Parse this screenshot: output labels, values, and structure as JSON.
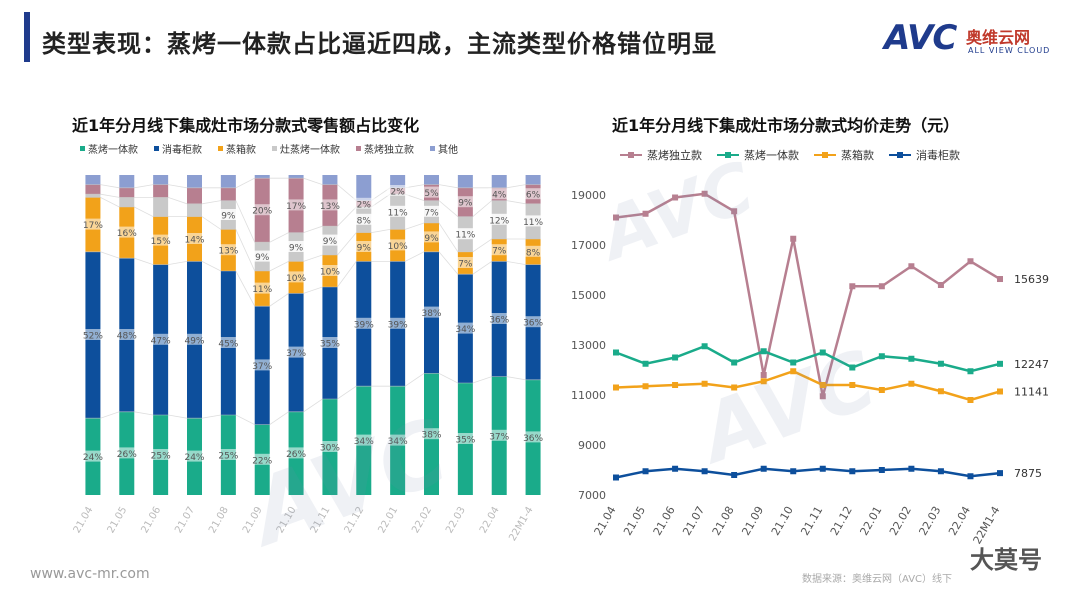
{
  "page_title": "类型表现：蒸烤一体款占比逼近四成，主流类型价格错位明显",
  "logo": {
    "mark": "AVC",
    "cn": "奥维云网",
    "en": "ALL VIEW CLOUD"
  },
  "footer": {
    "site": "www.avc-mr.com",
    "source": "数据来源：奥维云网（AVC）线下"
  },
  "corner_mark": "大莫号",
  "watermark": "AVC",
  "colors": {
    "steam_oven": "#1aab8a",
    "disinfect": "#0d4f9c",
    "steam_box": "#f2a21a",
    "stove_steam": "#c9c9c9",
    "steam_independent": "#b77f90",
    "other": "#8c9ed1",
    "title_bar": "#1f3b8c"
  },
  "chart_data": [
    {
      "type": "bar",
      "stacked": true,
      "percent": true,
      "title": "近1年分月线下集成灶市场分款式零售额占比变化",
      "legend_position": "top",
      "categories": [
        "21.04",
        "21.05",
        "21.06",
        "21.07",
        "21.08",
        "21.09",
        "21.10",
        "21.11",
        "21.12",
        "22.01",
        "22.02",
        "22.03",
        "22.04",
        "22M1-4"
      ],
      "series": [
        {
          "name": "蒸烤一体款",
          "values": [
            24,
            26,
            25,
            24,
            25,
            22,
            26,
            30,
            34,
            34,
            38,
            35,
            37,
            36
          ],
          "labels": [
            "24%",
            "26%",
            "25%",
            "24%",
            "25%",
            "22%",
            "26%",
            "30%",
            "34%",
            "34%",
            "38%",
            "35%",
            "37%",
            "36%"
          ]
        },
        {
          "name": "消毒柜款",
          "values": [
            52,
            48,
            47,
            49,
            45,
            37,
            37,
            35,
            39,
            39,
            38,
            34,
            36,
            36
          ],
          "labels": [
            "52%",
            "48%",
            "47%",
            "49%",
            "45%",
            "37%",
            "37%",
            "35%",
            "39%",
            "39%",
            "38%",
            "34%",
            "36%",
            "36%"
          ]
        },
        {
          "name": "蒸箱款",
          "values": [
            17,
            16,
            15,
            14,
            13,
            11,
            10,
            10,
            9,
            10,
            9,
            7,
            7,
            8
          ],
          "labels": [
            "17%",
            "16%",
            "15%",
            "14%",
            "13%",
            "11%",
            "10%",
            "10%",
            "9%",
            "10%",
            "9%",
            "7%",
            "7%",
            "8%"
          ]
        },
        {
          "name": "灶蒸烤一体款",
          "values": [
            1,
            3,
            6,
            4,
            9,
            9,
            9,
            9,
            8,
            11,
            7,
            11,
            12,
            11
          ],
          "labels": [
            "",
            "",
            "",
            "",
            "9%",
            "9%",
            "9%",
            "9%",
            "8%",
            "11%",
            "7%",
            "11%",
            "12%",
            "11%"
          ]
        },
        {
          "name": "蒸烤独立款",
          "values": [
            3,
            3,
            4,
            5,
            4,
            20,
            17,
            13,
            2,
            2,
            5,
            9,
            4,
            6
          ],
          "labels": [
            "",
            "",
            "",
            "",
            "",
            "20%",
            "17%",
            "13%",
            "2%",
            "2%",
            "5%",
            "9%",
            "4%",
            "6%"
          ]
        },
        {
          "name": "其他",
          "values": [
            3,
            4,
            3,
            4,
            4,
            1,
            1,
            3,
            8,
            4,
            3,
            4,
            4,
            3
          ],
          "labels": [
            "",
            "",
            "",
            "",
            "",
            "",
            "",
            "",
            "",
            "",
            "",
            "",
            "",
            ""
          ]
        }
      ]
    },
    {
      "type": "line",
      "title": "近1年分月线下集成灶市场分款式均价走势（元）",
      "legend_position": "top",
      "categories": [
        "21.04",
        "21.05",
        "21.06",
        "21.07",
        "21.08",
        "21.09",
        "21.10",
        "21.11",
        "21.12",
        "22.01",
        "22.02",
        "22.03",
        "22.04",
        "22M1-4"
      ],
      "ylim": [
        7000,
        19000
      ],
      "yticks": [
        7000,
        9000,
        11000,
        13000,
        15000,
        17000,
        19000
      ],
      "grid": false,
      "series": [
        {
          "name": "蒸烤独立款",
          "values": [
            18100,
            18250,
            18900,
            19050,
            18350,
            11800,
            17250,
            10950,
            15350,
            15350,
            16150,
            15400,
            16350,
            15639
          ],
          "end_label": "15639"
        },
        {
          "name": "蒸烤一体款",
          "values": [
            12700,
            12250,
            12500,
            12950,
            12300,
            12750,
            12300,
            12700,
            12100,
            12550,
            12450,
            12250,
            11950,
            12247
          ],
          "end_label": "12247"
        },
        {
          "name": "蒸箱款",
          "values": [
            11300,
            11350,
            11400,
            11450,
            11300,
            11550,
            11950,
            11400,
            11400,
            11200,
            11450,
            11150,
            10800,
            11141
          ],
          "end_label": "11141"
        },
        {
          "name": "消毒柜款",
          "values": [
            7700,
            7950,
            8050,
            7950,
            7800,
            8050,
            7950,
            8050,
            7950,
            8000,
            8050,
            7950,
            7750,
            7875
          ],
          "end_label": "7875"
        }
      ]
    }
  ]
}
